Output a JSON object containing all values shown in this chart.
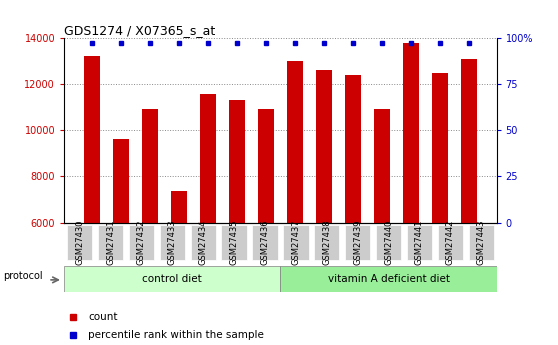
{
  "title": "GDS1274 / X07365_s_at",
  "samples": [
    "GSM27430",
    "GSM27431",
    "GSM27432",
    "GSM27433",
    "GSM27434",
    "GSM27435",
    "GSM27436",
    "GSM27437",
    "GSM27438",
    "GSM27439",
    "GSM27440",
    "GSM27441",
    "GSM27442",
    "GSM27443"
  ],
  "counts": [
    13200,
    9600,
    10900,
    7350,
    11550,
    11300,
    10900,
    13000,
    12600,
    12400,
    10900,
    13800,
    12500,
    13100
  ],
  "percentile_ranks": [
    98,
    97,
    97,
    95,
    97,
    97,
    97,
    98,
    97,
    97,
    96,
    99,
    97,
    98
  ],
  "bar_color": "#cc0000",
  "dot_color": "#0000cc",
  "ylim_left": [
    6000,
    14000
  ],
  "ylim_right": [
    0,
    100
  ],
  "yticks_left": [
    6000,
    8000,
    10000,
    12000,
    14000
  ],
  "yticks_right": [
    0,
    25,
    50,
    75,
    100
  ],
  "yticklabels_right": [
    "0",
    "25",
    "50",
    "75",
    "100%"
  ],
  "control_label": "control diet",
  "vitamin_label": "vitamin A deficient diet",
  "protocol_label": "protocol",
  "legend_count": "count",
  "legend_percentile": "percentile rank within the sample",
  "control_color": "#ccffcc",
  "vitamin_color": "#99ee99",
  "label_bg_color": "#cccccc",
  "bg_color": "#ffffff",
  "grid_color": "#888888",
  "n_control": 7,
  "n_vitamin": 7
}
